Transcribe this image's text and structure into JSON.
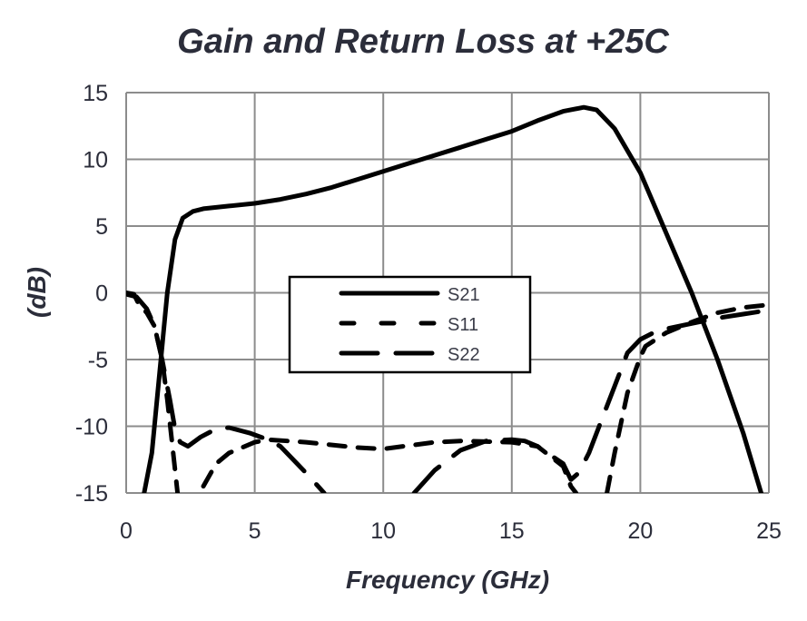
{
  "chart_data": {
    "type": "line",
    "title": "Gain and Return Loss at +25C",
    "xlabel": "Frequency (GHz)",
    "ylabel": "(dB)",
    "xlim": [
      0,
      25
    ],
    "ylim": [
      -15,
      15
    ],
    "xticks": [
      0,
      5,
      10,
      15,
      20,
      25
    ],
    "yticks": [
      15,
      10,
      5,
      0,
      -5,
      -10,
      -15
    ],
    "grid": true,
    "legend_position": "center",
    "series": [
      {
        "name": "S21",
        "style": "solid",
        "x": [
          0.7,
          1.0,
          1.3,
          1.6,
          1.9,
          2.2,
          2.6,
          3,
          4,
          5,
          6,
          7,
          8,
          9,
          10,
          11,
          12,
          13,
          14,
          15,
          16,
          17,
          17.8,
          18.3,
          19,
          20,
          21,
          22,
          23,
          24,
          24.7
        ],
        "y": [
          -15,
          -12,
          -6,
          0,
          4,
          5.6,
          6.1,
          6.3,
          6.5,
          6.7,
          7.0,
          7.4,
          7.9,
          8.5,
          9.1,
          9.7,
          10.3,
          10.9,
          11.5,
          12.1,
          12.9,
          13.6,
          13.9,
          13.7,
          12.3,
          9,
          4.5,
          0,
          -5,
          -10.5,
          -15
        ]
      },
      {
        "name": "S11",
        "style": "short-dash",
        "x": [
          0,
          0.3,
          0.5,
          0.8,
          1.1,
          1.4,
          1.6,
          1.8,
          2.0,
          null,
          3.0,
          3.5,
          4,
          5,
          5.5,
          7,
          9,
          10,
          12,
          13,
          15,
          16,
          17,
          17.3,
          17.5,
          null,
          18.7,
          19,
          19.5,
          20,
          20.2,
          21,
          22,
          23,
          24,
          25
        ],
        "y": [
          0,
          -0.1,
          -0.9,
          -1.5,
          -2.5,
          -5,
          -8,
          -11.5,
          -15,
          null,
          -14.5,
          -12.8,
          -12,
          -11.2,
          -11,
          -11.2,
          -11.6,
          -11.7,
          -11.2,
          -11.1,
          -11.2,
          -11.5,
          -13,
          -14.5,
          -15,
          null,
          -15,
          -12,
          -7.5,
          -4.8,
          -4,
          -3,
          -2.2,
          -1.5,
          -1.1,
          -0.9
        ]
      },
      {
        "name": "S22",
        "style": "long-dash",
        "x": [
          0,
          0.4,
          0.8,
          1.1,
          1.4,
          1.7,
          1.9,
          2.1,
          2.4,
          2.9,
          3.5,
          4,
          4.8,
          5.5,
          6,
          7,
          7.7,
          null,
          11.2,
          12,
          13,
          14,
          15,
          15.5,
          16,
          17,
          17.3,
          17.6,
          18,
          18.5,
          19,
          19.5,
          20,
          20.5,
          21,
          22,
          23,
          24,
          25
        ],
        "y": [
          -0.1,
          -0.3,
          -1.2,
          -2.5,
          -5,
          -8,
          -10.2,
          -11.2,
          -11.5,
          -10.8,
          -10.2,
          -10.1,
          -10.5,
          -11,
          -11.5,
          -13.5,
          -15,
          null,
          -15,
          -13.3,
          -11.8,
          -11.1,
          -11,
          -11.1,
          -11.5,
          -12.8,
          -14,
          -13.5,
          -12,
          -9.5,
          -7,
          -4.5,
          -3.5,
          -3,
          -2.7,
          -2.3,
          -1.9,
          -1.6,
          -1.3
        ]
      }
    ]
  }
}
